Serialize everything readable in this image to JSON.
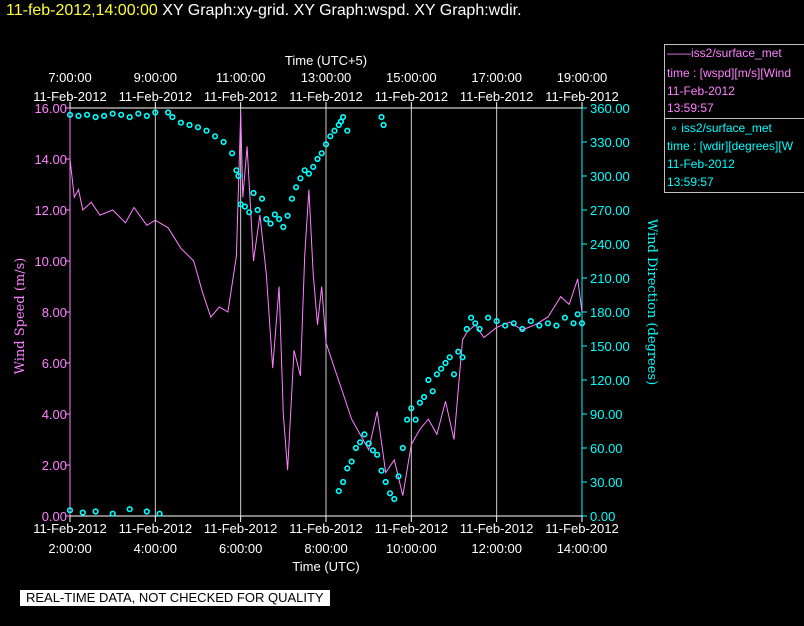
{
  "header": {
    "timestamp": "11-feb-2012,14:00:00",
    "graphs": "XY Graph:xy-grid.  XY Graph:wspd.  XY Graph:wdir."
  },
  "legend": {
    "speed": {
      "station": "iss2/surface_met",
      "var": "time : [wspd][m/s][Wind",
      "date": "11-Feb-2012",
      "time": "13:59:57",
      "color": "#ff80ff"
    },
    "dir": {
      "station": "iss2/surface_met",
      "var": "time : [wdir][degrees][W",
      "date": "11-Feb-2012",
      "time": "13:59:57",
      "color": "#00ffff"
    }
  },
  "footer": {
    "badge": "REAL-TIME DATA, NOT CHECKED FOR QUALITY"
  },
  "chart_data": {
    "type": "line",
    "top_axis_label": "Time (UTC+5)",
    "bottom_axis_label": "Time (UTC)",
    "top_ticks": [
      {
        "date": "11-Feb-2012",
        "time": "7:00:00"
      },
      {
        "date": "11-Feb-2012",
        "time": "9:00:00"
      },
      {
        "date": "11-Feb-2012",
        "time": "11:00:00"
      },
      {
        "date": "11-Feb-2012",
        "time": "13:00:00"
      },
      {
        "date": "11-Feb-2012",
        "time": "15:00:00"
      },
      {
        "date": "11-Feb-2012",
        "time": "17:00:00"
      },
      {
        "date": "11-Feb-2012",
        "time": "19:00:00"
      }
    ],
    "bottom_ticks": [
      {
        "date": "11-Feb-2012",
        "time": "2:00:00"
      },
      {
        "date": "11-Feb-2012",
        "time": "4:00:00"
      },
      {
        "date": "11-Feb-2012",
        "time": "6:00:00"
      },
      {
        "date": "11-Feb-2012",
        "time": "8:00:00"
      },
      {
        "date": "11-Feb-2012",
        "time": "10:00:00"
      },
      {
        "date": "11-Feb-2012",
        "time": "12:00:00"
      },
      {
        "date": "11-Feb-2012",
        "time": "14:00:00"
      }
    ],
    "xlim_utc_hours": [
      2.0,
      14.0
    ],
    "grid": true,
    "left_axis": {
      "label": "Wind Speed (m/s)",
      "ylim": [
        0,
        16
      ],
      "ticks": [
        "0.00",
        "2.00",
        "4.00",
        "6.00",
        "8.00",
        "10.00",
        "12.00",
        "14.00",
        "16.00"
      ],
      "color": "#ff80ff"
    },
    "right_axis": {
      "label": "Wind Direction (degrees)",
      "ylim": [
        0,
        360
      ],
      "ticks": [
        "0.00",
        "30.00",
        "60.00",
        "90.00",
        "120.00",
        "150.00",
        "180.00",
        "210.00",
        "240.00",
        "270.00",
        "300.00",
        "330.00",
        "360.00"
      ],
      "color": "#00ffff"
    },
    "series": [
      {
        "name": "iss2/surface_met wspd",
        "kind": "line",
        "axis": "left",
        "x": [
          2.0,
          2.1,
          2.2,
          2.3,
          2.5,
          2.7,
          3.0,
          3.3,
          3.5,
          3.8,
          4.0,
          4.3,
          4.6,
          4.9,
          5.1,
          5.3,
          5.5,
          5.7,
          5.9,
          6.0,
          6.05,
          6.15,
          6.3,
          6.45,
          6.6,
          6.75,
          6.9,
          7.0,
          7.1,
          7.25,
          7.4,
          7.5,
          7.6,
          7.7,
          7.8,
          7.9,
          8.0,
          8.2,
          8.4,
          8.6,
          8.8,
          9.0,
          9.2,
          9.4,
          9.6,
          9.8,
          10.0,
          10.2,
          10.4,
          10.6,
          10.8,
          11.0,
          11.2,
          11.3,
          11.5,
          11.7,
          12.0,
          12.3,
          12.6,
          12.9,
          13.2,
          13.5,
          13.7,
          13.9,
          14.0
        ],
        "y": [
          14.0,
          12.5,
          12.8,
          12.0,
          12.3,
          11.8,
          12.0,
          11.5,
          12.1,
          11.4,
          11.6,
          11.3,
          10.5,
          10.0,
          8.8,
          7.8,
          8.2,
          8.0,
          10.2,
          15.8,
          12.5,
          14.5,
          10.0,
          11.8,
          9.5,
          5.8,
          9.0,
          4.0,
          1.8,
          6.5,
          5.5,
          10.2,
          12.8,
          9.5,
          7.5,
          9.0,
          6.8,
          5.8,
          4.8,
          3.8,
          3.2,
          2.6,
          4.1,
          1.7,
          2.2,
          0.8,
          2.8,
          3.4,
          3.8,
          3.2,
          4.5,
          3.0,
          6.9,
          7.2,
          7.5,
          7.0,
          7.4,
          7.6,
          7.3,
          7.5,
          7.8,
          8.6,
          8.3,
          9.3,
          8.0
        ]
      },
      {
        "name": "iss2/surface_met wdir",
        "kind": "scatter",
        "axis": "right",
        "x": [
          2.0,
          2.2,
          2.4,
          2.6,
          2.8,
          3.0,
          3.2,
          3.4,
          3.6,
          3.8,
          4.0,
          2.0,
          2.3,
          2.6,
          3.0,
          3.4,
          3.8,
          4.1,
          4.3,
          4.4,
          4.6,
          4.8,
          5.0,
          5.2,
          5.4,
          5.6,
          5.8,
          5.9,
          5.95,
          6.0,
          6.1,
          6.2,
          6.3,
          6.4,
          6.5,
          6.6,
          6.7,
          6.8,
          6.9,
          7.0,
          7.1,
          7.2,
          7.3,
          7.4,
          7.5,
          7.6,
          7.7,
          7.8,
          7.9,
          8.0,
          8.1,
          8.2,
          8.3,
          8.35,
          8.4,
          8.5,
          9.3,
          9.35,
          8.3,
          8.4,
          8.5,
          8.6,
          8.7,
          8.8,
          8.9,
          9.0,
          9.1,
          9.2,
          9.3,
          9.4,
          9.5,
          9.6,
          9.7,
          9.8,
          9.9,
          10.0,
          10.1,
          10.2,
          10.3,
          10.4,
          10.5,
          10.6,
          10.7,
          10.8,
          10.9,
          11.0,
          11.1,
          11.2,
          11.3,
          11.4,
          11.5,
          11.6,
          11.8,
          12.0,
          12.2,
          12.4,
          12.6,
          12.8,
          13.0,
          13.2,
          13.4,
          13.6,
          13.8,
          13.9,
          14.0
        ],
        "y": [
          354,
          353,
          354,
          352,
          353,
          355,
          354,
          352,
          355,
          353,
          356,
          5,
          3,
          4,
          2,
          6,
          4,
          2,
          356,
          352,
          347,
          345,
          343,
          340,
          335,
          330,
          320,
          305,
          300,
          275,
          273,
          268,
          285,
          270,
          280,
          262,
          258,
          266,
          262,
          255,
          265,
          280,
          290,
          298,
          305,
          302,
          308,
          315,
          320,
          328,
          335,
          340,
          345,
          348,
          352,
          340,
          352,
          345,
          22,
          30,
          42,
          48,
          60,
          65,
          72,
          64,
          58,
          54,
          40,
          30,
          20,
          15,
          35,
          60,
          85,
          95,
          85,
          100,
          105,
          120,
          110,
          125,
          130,
          135,
          140,
          125,
          145,
          140,
          165,
          175,
          170,
          165,
          175,
          172,
          168,
          170,
          165,
          172,
          168,
          170,
          168,
          175,
          170,
          178,
          170
        ]
      }
    ]
  }
}
